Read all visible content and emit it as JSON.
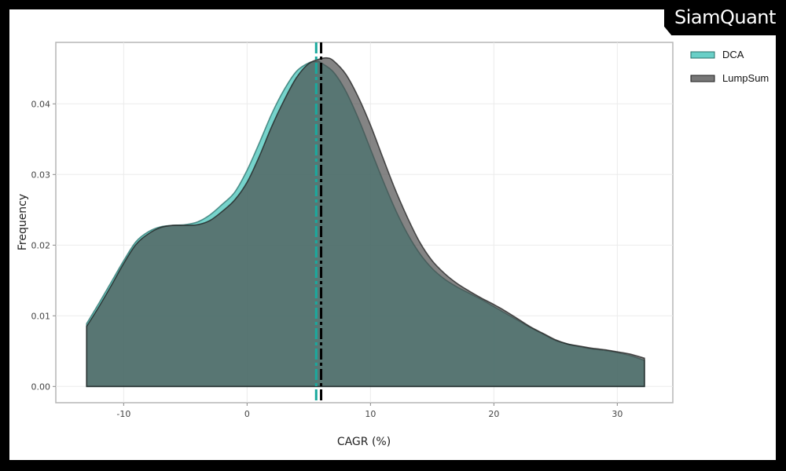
{
  "brand": {
    "name": "SiamQuant"
  },
  "chart_data": {
    "type": "area",
    "chart_subtype": "density",
    "title": "",
    "xlabel": "CAGR (%)",
    "ylabel": "Frequency",
    "xlim": [
      -15.5,
      34.5
    ],
    "ylim": [
      -0.0023,
      0.0487
    ],
    "x_ticks": [
      -10,
      0,
      10,
      20,
      30
    ],
    "y_ticks": [
      0.0,
      0.01,
      0.02,
      0.03,
      0.04
    ],
    "x_tick_labels": [
      "-10",
      "0",
      "10",
      "20",
      "30"
    ],
    "y_tick_labels": [
      "0.00",
      "0.01",
      "0.02",
      "0.03",
      "0.04"
    ],
    "grid": true,
    "legend_position": "right",
    "series": [
      {
        "name": "DCA",
        "color": "#4fc7bd",
        "mean_line_color": "#1aa99d",
        "mean": 5.6,
        "x": [
          -13.0,
          -12,
          -11,
          -10,
          -9,
          -8,
          -7,
          -6,
          -5,
          -4,
          -3,
          -2,
          -1,
          0,
          1,
          2,
          3,
          4,
          5,
          5.7,
          6,
          7,
          8,
          9,
          10,
          11,
          12,
          13,
          14,
          15,
          16,
          17,
          18,
          19,
          20,
          21,
          22,
          23,
          24,
          25,
          26,
          27,
          28,
          29,
          30,
          31,
          32.2
        ],
        "y": [
          0.0089,
          0.0118,
          0.0148,
          0.0178,
          0.0205,
          0.0219,
          0.0226,
          0.0228,
          0.0229,
          0.0233,
          0.0243,
          0.0258,
          0.0275,
          0.0306,
          0.0345,
          0.0386,
          0.042,
          0.0446,
          0.0458,
          0.046,
          0.0458,
          0.0445,
          0.0418,
          0.038,
          0.0336,
          0.0292,
          0.0251,
          0.0216,
          0.0188,
          0.0167,
          0.0152,
          0.0141,
          0.0132,
          0.0123,
          0.0113,
          0.0103,
          0.0093,
          0.0083,
          0.0074,
          0.0065,
          0.006,
          0.0056,
          0.0053,
          0.0051,
          0.0048,
          0.0044,
          0.0037
        ]
      },
      {
        "name": "LumpSum",
        "color": "#555555",
        "mean_line_color": "#000000",
        "mean": 6.0,
        "x": [
          -13.0,
          -12,
          -11,
          -10,
          -9,
          -8,
          -7,
          -6,
          -5,
          -4,
          -3,
          -2,
          -1,
          0,
          1,
          2,
          3,
          4,
          5,
          6,
          6.5,
          7,
          8,
          9,
          10,
          11,
          12,
          13,
          14,
          15,
          16,
          17,
          18,
          19,
          20,
          21,
          22,
          23,
          24,
          25,
          26,
          27,
          28,
          29,
          30,
          31,
          32.2
        ],
        "y": [
          0.0085,
          0.0113,
          0.0143,
          0.0174,
          0.0201,
          0.0216,
          0.0225,
          0.0228,
          0.0228,
          0.0229,
          0.0235,
          0.0248,
          0.0264,
          0.0289,
          0.0326,
          0.0368,
          0.0405,
          0.0437,
          0.0457,
          0.0464,
          0.0465,
          0.0461,
          0.0442,
          0.041,
          0.037,
          0.0324,
          0.0279,
          0.0239,
          0.0204,
          0.0178,
          0.016,
          0.0146,
          0.0135,
          0.0125,
          0.0116,
          0.0106,
          0.0095,
          0.0084,
          0.0075,
          0.0066,
          0.006,
          0.0057,
          0.0054,
          0.0052,
          0.0049,
          0.0046,
          0.004
        ]
      }
    ]
  }
}
